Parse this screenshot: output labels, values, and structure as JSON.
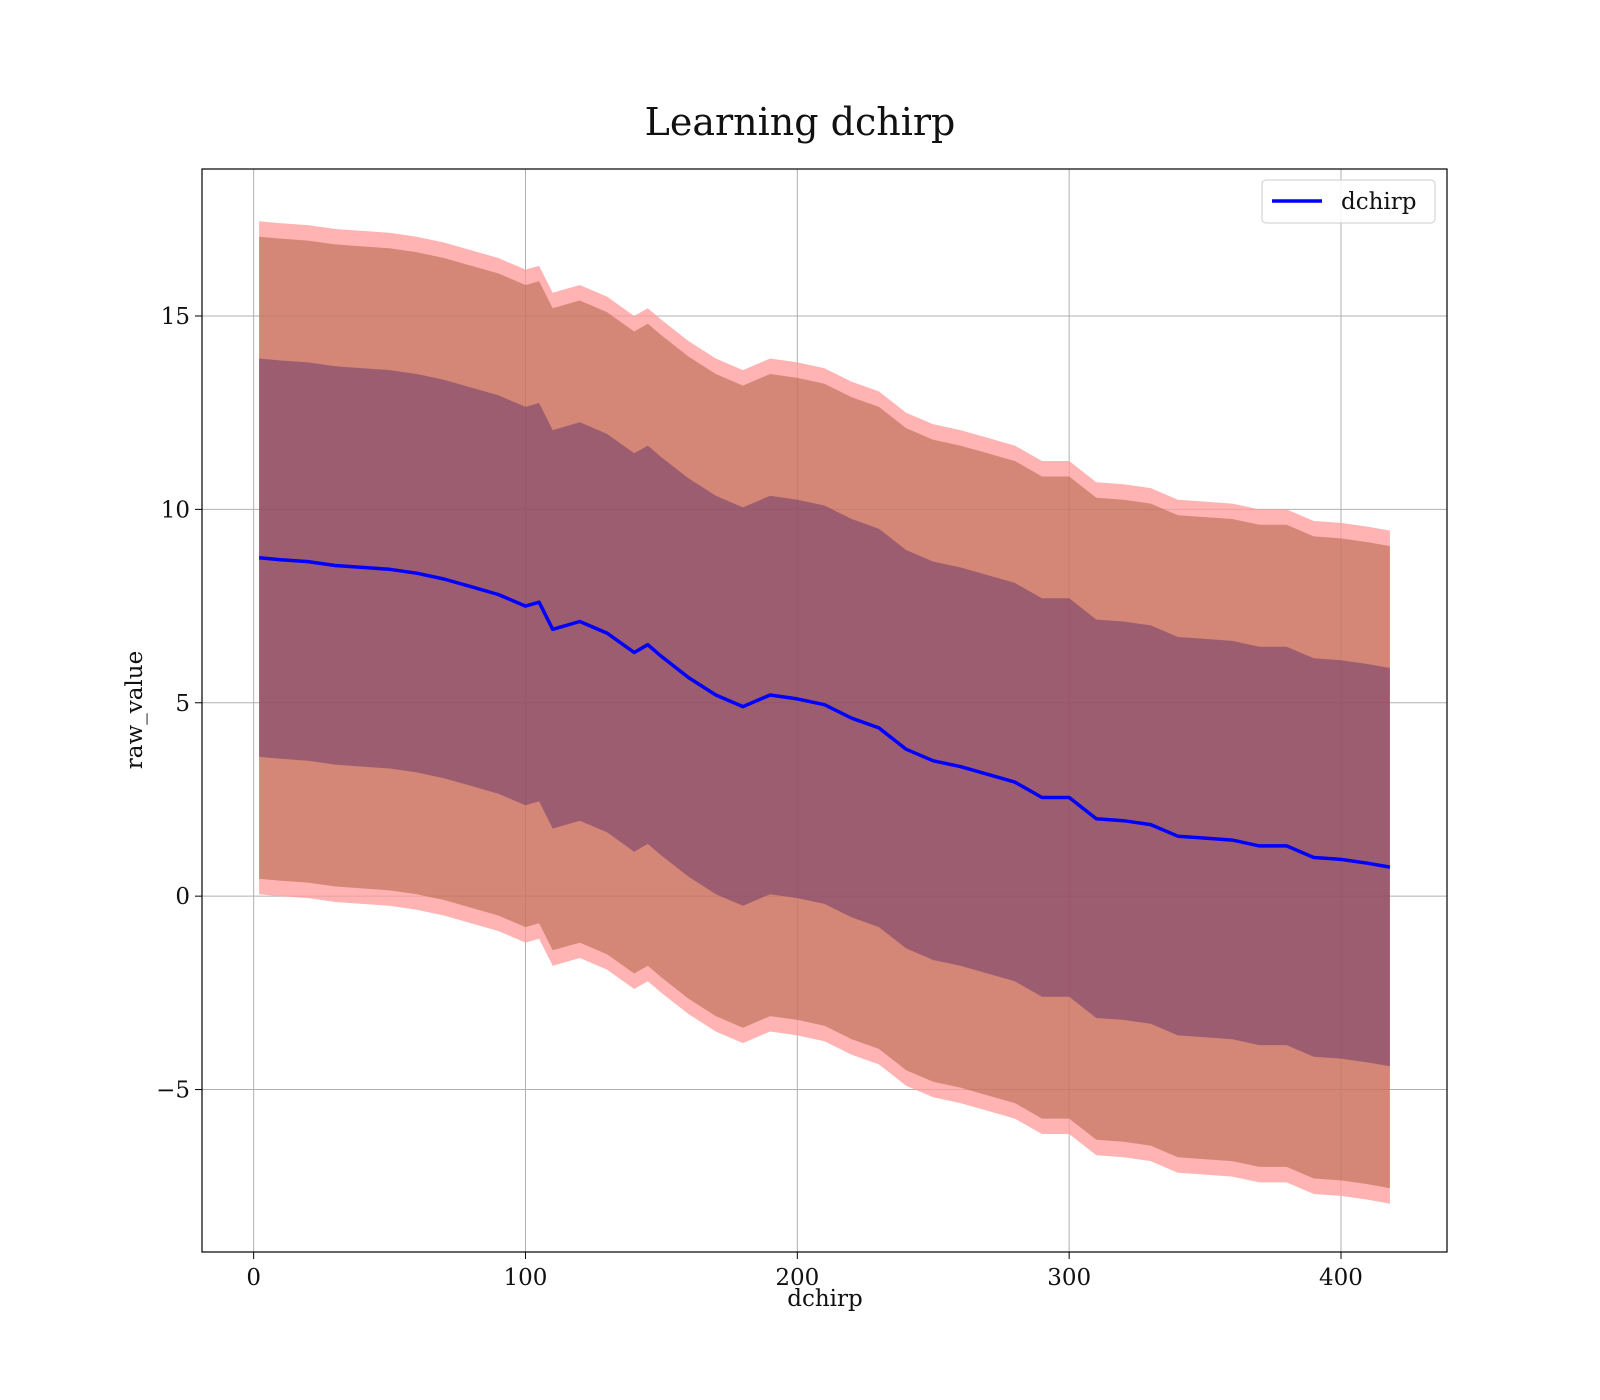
{
  "chart_data": {
    "type": "line",
    "title": "Learning dchirp",
    "xlabel": "dchirp",
    "ylabel": "raw_value",
    "xlim": [
      -19,
      439
    ],
    "ylim": [
      -9.2,
      18.8
    ],
    "x_ticks": [
      0,
      100,
      200,
      300,
      400
    ],
    "y_ticks": [
      -5,
      0,
      5,
      10,
      15
    ],
    "x_tick_labels": [
      "0",
      "100",
      "200",
      "300",
      "400"
    ],
    "y_tick_labels": [
      "−5",
      "0",
      "5",
      "10",
      "15"
    ],
    "grid": true,
    "legend": {
      "position": "top-right",
      "entries": [
        "dchirp"
      ]
    },
    "colors": {
      "line": "#0000ff",
      "outer_band": "#ff9999",
      "middle_band": "#a0522d",
      "inner_band": "#5a2a6a",
      "grid": "#b0b0b0"
    },
    "series": [
      {
        "name": "dchirp",
        "x": [
          2,
          10,
          20,
          30,
          40,
          50,
          60,
          70,
          80,
          90,
          100,
          105,
          110,
          120,
          130,
          140,
          145,
          150,
          160,
          170,
          180,
          190,
          200,
          210,
          220,
          230,
          240,
          250,
          260,
          270,
          280,
          290,
          300,
          310,
          320,
          330,
          340,
          350,
          360,
          370,
          380,
          390,
          400,
          410,
          418
        ],
        "y": [
          8.75,
          8.7,
          8.65,
          8.55,
          8.5,
          8.45,
          8.35,
          8.2,
          8.0,
          7.8,
          7.5,
          7.6,
          6.9,
          7.1,
          6.8,
          6.3,
          6.5,
          6.2,
          5.65,
          5.2,
          4.9,
          5.2,
          5.1,
          4.95,
          4.6,
          4.35,
          3.8,
          3.5,
          3.35,
          3.15,
          2.95,
          2.55,
          2.55,
          2.0,
          1.95,
          1.85,
          1.55,
          1.5,
          1.45,
          1.3,
          1.3,
          1.0,
          0.95,
          0.85,
          0.75
        ]
      }
    ],
    "bands": [
      {
        "name": "outer",
        "half_width": 8.7
      },
      {
        "name": "middle",
        "half_width": 8.3
      },
      {
        "name": "inner",
        "half_width": 5.15
      }
    ]
  }
}
